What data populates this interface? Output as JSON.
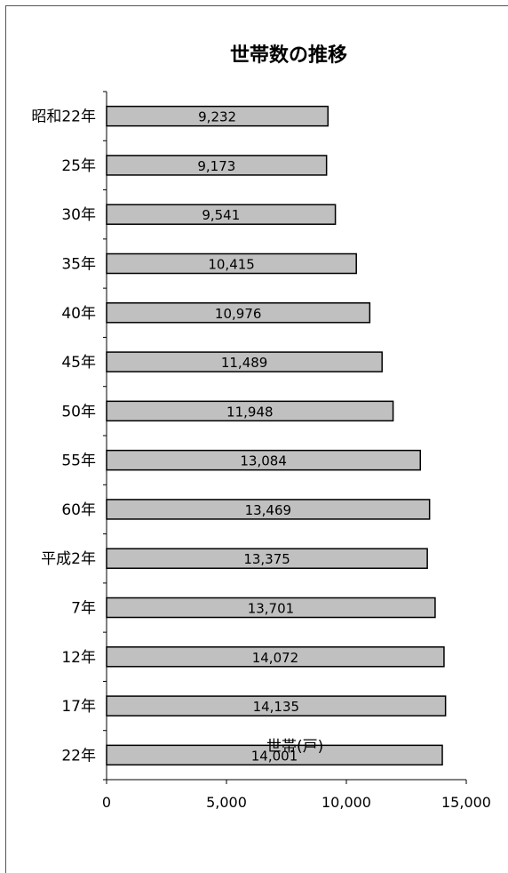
{
  "chart_data": {
    "type": "bar",
    "orientation": "horizontal",
    "title": "世帯数の推移",
    "xlabel": "世帯(戸)",
    "ylabel": "",
    "xlim": [
      0,
      15000
    ],
    "x_ticks": [
      0,
      5000,
      10000,
      15000
    ],
    "x_tick_labels": [
      "0",
      "5,000",
      "10,000",
      "15,000"
    ],
    "grid": false,
    "bar_color": "#c0c0c0",
    "bar_edge_color": "#000000",
    "categories": [
      "昭和22年",
      "25年",
      "30年",
      "35年",
      "40年",
      "45年",
      "50年",
      "55年",
      "60年",
      "平成2年",
      "7年",
      "12年",
      "17年",
      "22年"
    ],
    "values": [
      9232,
      9173,
      9541,
      10415,
      10976,
      11489,
      11948,
      13084,
      13469,
      13375,
      13701,
      14072,
      14135,
      14001
    ],
    "data_labels": [
      "9,232",
      "9,173",
      "9,541",
      "10,415",
      "10,976",
      "11,489",
      "11,948",
      "13,084",
      "13,469",
      "13,375",
      "13,701",
      "14,072",
      "14,135",
      "14,001"
    ]
  }
}
